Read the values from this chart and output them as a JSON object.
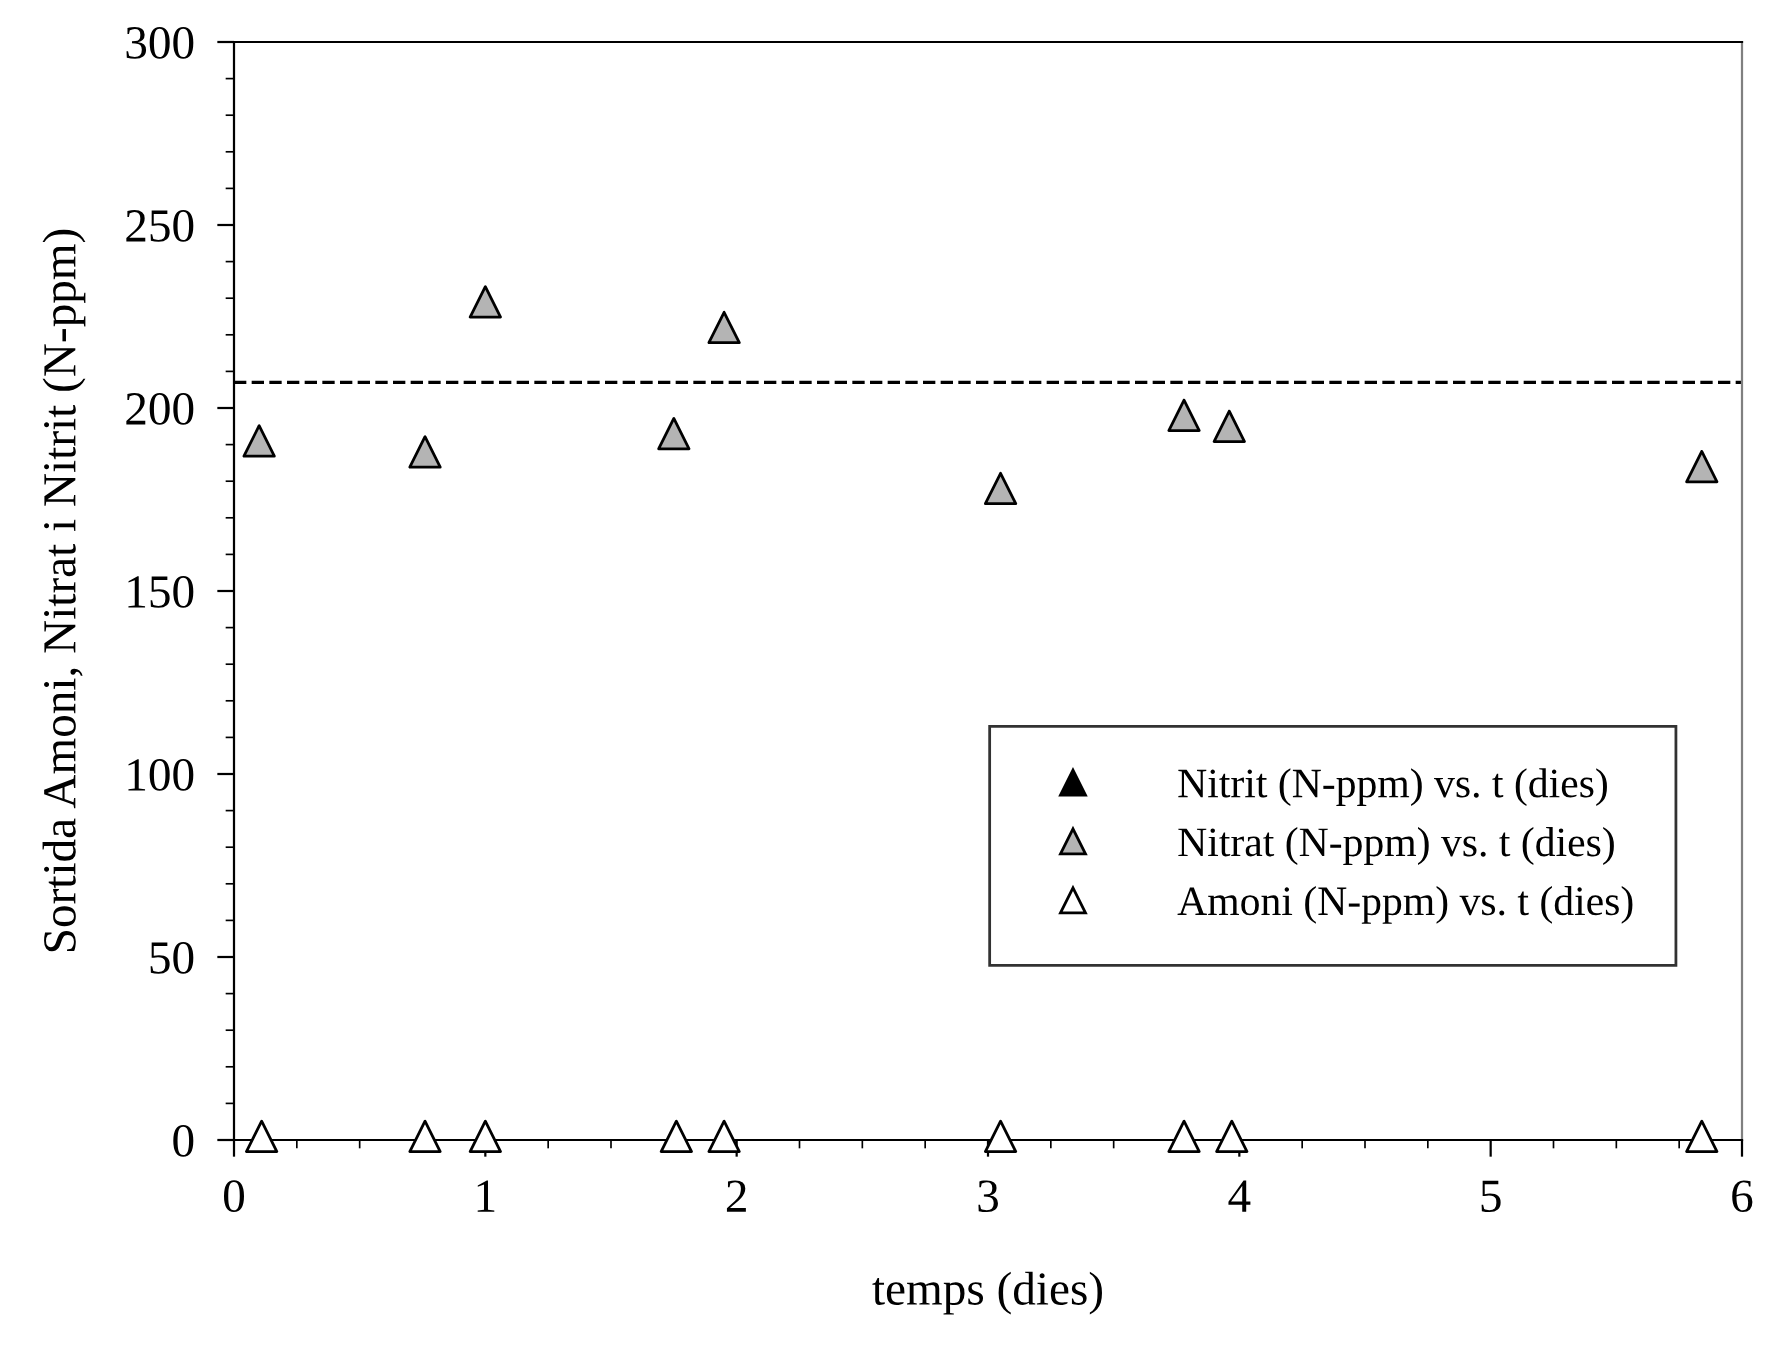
{
  "chart_data": {
    "type": "scatter",
    "xlabel": "temps (dies)",
    "ylabel": "Sortida Amoni, Nitrat i Nitrit (N-ppm)",
    "xlim": [
      0,
      6
    ],
    "xticks": [
      0,
      1,
      2,
      3,
      4,
      5,
      6
    ],
    "ylim": [
      0,
      300
    ],
    "yticks": [
      0,
      50,
      100,
      150,
      200,
      250,
      300
    ],
    "marker": "triangle",
    "grid": false,
    "legend": "bottom right",
    "series": [
      {
        "name": "Nitrit (N-ppm) vs. t (dies)",
        "color": "#000000"
      },
      {
        "name": "Nitrat (N-ppm) vs. t (dies)",
        "color": "#b4b4b4",
        "x": [
          0.1,
          0.76,
          1.0,
          1.75,
          1.95,
          3.05,
          3.78,
          3.96,
          5.84
        ],
        "values": [
          191,
          188,
          229,
          193,
          222,
          178,
          198,
          195,
          184
        ]
      },
      {
        "name": "Amoni (N-ppm) vs. t (dies)",
        "color": "#ffffff",
        "x": [
          0.11,
          0.76,
          1.0,
          1.76,
          1.95,
          3.05,
          3.78,
          3.97,
          5.84
        ],
        "values": [
          1,
          1,
          1,
          1,
          1,
          1,
          1,
          1,
          1
        ]
      }
    ],
    "ref_lines": [
      {
        "axis": "y",
        "value": 207,
        "line_style": "dashed",
        "color": "#000000"
      }
    ]
  }
}
